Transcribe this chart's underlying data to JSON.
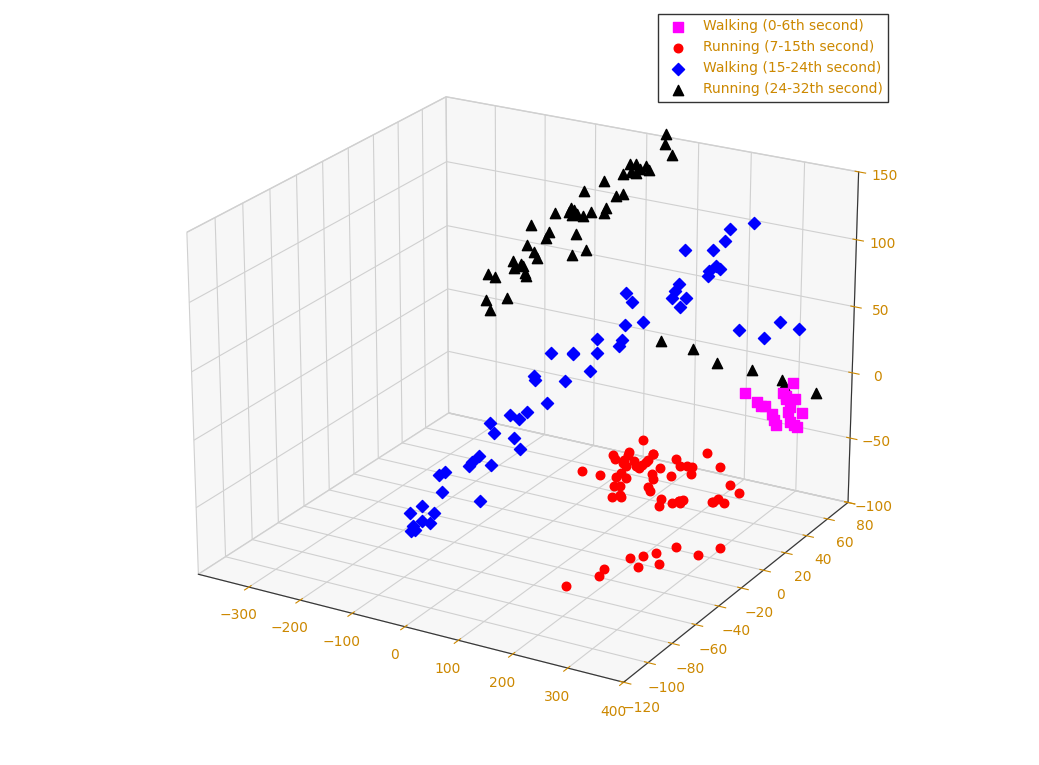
{
  "xlim": [
    -400,
    400
  ],
  "ylim": [
    -120,
    80
  ],
  "zlim": [
    -100,
    150
  ],
  "xticks": [
    -300,
    -200,
    -100,
    0,
    100,
    200,
    300,
    400
  ],
  "yticks": [
    -120,
    -100,
    -80,
    -60,
    -40,
    -20,
    0,
    20,
    40,
    60,
    80
  ],
  "zticks": [
    -100,
    -50,
    0,
    50,
    100,
    150
  ],
  "tick_color": "#cc8800",
  "grid_color": "#d0d0d0",
  "pane_color": "#f0f0f0",
  "background_color": "white",
  "elev": 22,
  "azim": -60,
  "series": [
    {
      "label": "Walking (0-6th second)",
      "color": "magenta",
      "marker": "s",
      "size": 45
    },
    {
      "label": "Running (7-15th second)",
      "color": "red",
      "marker": "o",
      "size": 38
    },
    {
      "label": "Walking (15-24th second)",
      "color": "blue",
      "marker": "D",
      "size": 38
    },
    {
      "label": "Running (24-32th second)",
      "color": "black",
      "marker": "^",
      "size": 55
    }
  ]
}
